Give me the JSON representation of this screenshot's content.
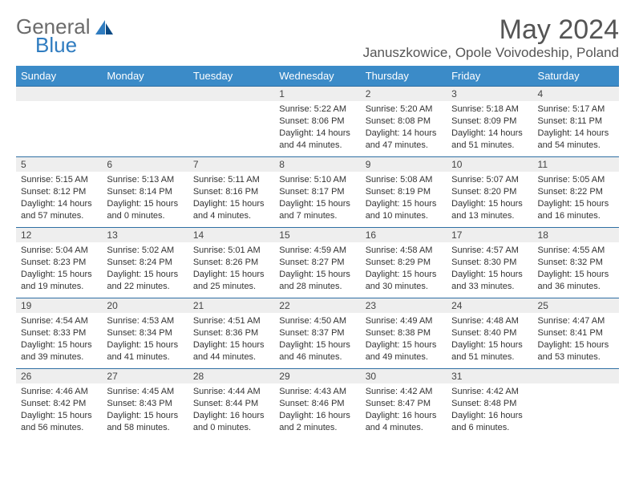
{
  "brand": {
    "part1": "General",
    "part2": "Blue"
  },
  "title": "May 2024",
  "location": "Januszkowice, Opole Voivodeship, Poland",
  "colors": {
    "header_bg": "#3b8bc8",
    "header_text": "#ffffff",
    "daynum_bg": "#eeeeee",
    "rule": "#2f6fa3",
    "body_text": "#333333",
    "title_text": "#555555",
    "brand_grey": "#6b6b6b",
    "brand_blue": "#2f7cc0"
  },
  "weekdays": [
    "Sunday",
    "Monday",
    "Tuesday",
    "Wednesday",
    "Thursday",
    "Friday",
    "Saturday"
  ],
  "weeks": [
    [
      null,
      null,
      null,
      {
        "n": "1",
        "sr": "5:22 AM",
        "ss": "8:06 PM",
        "dl": "14 hours and 44 minutes."
      },
      {
        "n": "2",
        "sr": "5:20 AM",
        "ss": "8:08 PM",
        "dl": "14 hours and 47 minutes."
      },
      {
        "n": "3",
        "sr": "5:18 AM",
        "ss": "8:09 PM",
        "dl": "14 hours and 51 minutes."
      },
      {
        "n": "4",
        "sr": "5:17 AM",
        "ss": "8:11 PM",
        "dl": "14 hours and 54 minutes."
      }
    ],
    [
      {
        "n": "5",
        "sr": "5:15 AM",
        "ss": "8:12 PM",
        "dl": "14 hours and 57 minutes."
      },
      {
        "n": "6",
        "sr": "5:13 AM",
        "ss": "8:14 PM",
        "dl": "15 hours and 0 minutes."
      },
      {
        "n": "7",
        "sr": "5:11 AM",
        "ss": "8:16 PM",
        "dl": "15 hours and 4 minutes."
      },
      {
        "n": "8",
        "sr": "5:10 AM",
        "ss": "8:17 PM",
        "dl": "15 hours and 7 minutes."
      },
      {
        "n": "9",
        "sr": "5:08 AM",
        "ss": "8:19 PM",
        "dl": "15 hours and 10 minutes."
      },
      {
        "n": "10",
        "sr": "5:07 AM",
        "ss": "8:20 PM",
        "dl": "15 hours and 13 minutes."
      },
      {
        "n": "11",
        "sr": "5:05 AM",
        "ss": "8:22 PM",
        "dl": "15 hours and 16 minutes."
      }
    ],
    [
      {
        "n": "12",
        "sr": "5:04 AM",
        "ss": "8:23 PM",
        "dl": "15 hours and 19 minutes."
      },
      {
        "n": "13",
        "sr": "5:02 AM",
        "ss": "8:24 PM",
        "dl": "15 hours and 22 minutes."
      },
      {
        "n": "14",
        "sr": "5:01 AM",
        "ss": "8:26 PM",
        "dl": "15 hours and 25 minutes."
      },
      {
        "n": "15",
        "sr": "4:59 AM",
        "ss": "8:27 PM",
        "dl": "15 hours and 28 minutes."
      },
      {
        "n": "16",
        "sr": "4:58 AM",
        "ss": "8:29 PM",
        "dl": "15 hours and 30 minutes."
      },
      {
        "n": "17",
        "sr": "4:57 AM",
        "ss": "8:30 PM",
        "dl": "15 hours and 33 minutes."
      },
      {
        "n": "18",
        "sr": "4:55 AM",
        "ss": "8:32 PM",
        "dl": "15 hours and 36 minutes."
      }
    ],
    [
      {
        "n": "19",
        "sr": "4:54 AM",
        "ss": "8:33 PM",
        "dl": "15 hours and 39 minutes."
      },
      {
        "n": "20",
        "sr": "4:53 AM",
        "ss": "8:34 PM",
        "dl": "15 hours and 41 minutes."
      },
      {
        "n": "21",
        "sr": "4:51 AM",
        "ss": "8:36 PM",
        "dl": "15 hours and 44 minutes."
      },
      {
        "n": "22",
        "sr": "4:50 AM",
        "ss": "8:37 PM",
        "dl": "15 hours and 46 minutes."
      },
      {
        "n": "23",
        "sr": "4:49 AM",
        "ss": "8:38 PM",
        "dl": "15 hours and 49 minutes."
      },
      {
        "n": "24",
        "sr": "4:48 AM",
        "ss": "8:40 PM",
        "dl": "15 hours and 51 minutes."
      },
      {
        "n": "25",
        "sr": "4:47 AM",
        "ss": "8:41 PM",
        "dl": "15 hours and 53 minutes."
      }
    ],
    [
      {
        "n": "26",
        "sr": "4:46 AM",
        "ss": "8:42 PM",
        "dl": "15 hours and 56 minutes."
      },
      {
        "n": "27",
        "sr": "4:45 AM",
        "ss": "8:43 PM",
        "dl": "15 hours and 58 minutes."
      },
      {
        "n": "28",
        "sr": "4:44 AM",
        "ss": "8:44 PM",
        "dl": "16 hours and 0 minutes."
      },
      {
        "n": "29",
        "sr": "4:43 AM",
        "ss": "8:46 PM",
        "dl": "16 hours and 2 minutes."
      },
      {
        "n": "30",
        "sr": "4:42 AM",
        "ss": "8:47 PM",
        "dl": "16 hours and 4 minutes."
      },
      {
        "n": "31",
        "sr": "4:42 AM",
        "ss": "8:48 PM",
        "dl": "16 hours and 6 minutes."
      },
      null
    ]
  ],
  "labels": {
    "sunrise": "Sunrise:",
    "sunset": "Sunset:",
    "daylight": "Daylight:"
  }
}
